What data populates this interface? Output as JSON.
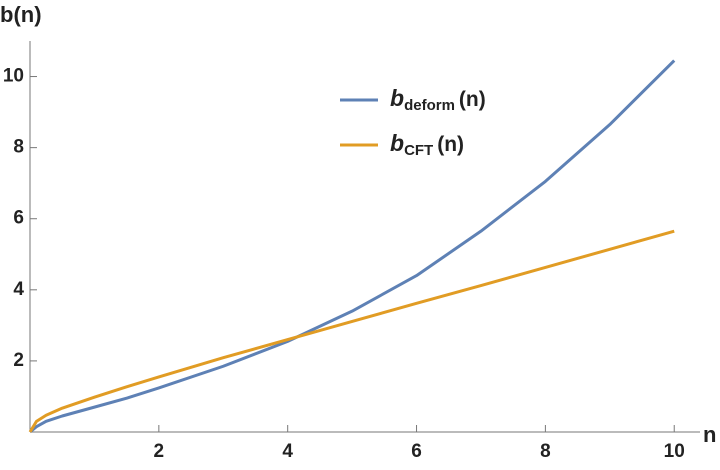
{
  "chart_data": {
    "type": "line",
    "x_label": "n",
    "y_label": "b(n)",
    "x": [
      0,
      0.1,
      0.25,
      0.5,
      1,
      1.5,
      2,
      3,
      4,
      5,
      6,
      7,
      8,
      9,
      10
    ],
    "series": [
      {
        "name": {
          "base": "b",
          "subscript": "deform",
          "argument": "(n)"
        },
        "color": "#5e81b5",
        "values": [
          0,
          0.15,
          0.3,
          0.45,
          0.7,
          0.95,
          1.24,
          1.85,
          2.55,
          3.4,
          4.4,
          5.65,
          7.05,
          8.65,
          10.45
        ]
      },
      {
        "name": {
          "base": "b",
          "subscript": "CFT",
          "argument": "(n)"
        },
        "color": "#e19c24",
        "values": [
          0,
          0.3,
          0.47,
          0.67,
          0.98,
          1.27,
          1.55,
          2.09,
          2.6,
          3.11,
          3.62,
          4.12,
          4.63,
          5.14,
          5.65
        ]
      }
    ],
    "xlim": [
      0,
      10.4
    ],
    "ylim": [
      0,
      11
    ],
    "xticks": [
      2,
      4,
      6,
      8,
      10
    ],
    "yticks": [
      2,
      4,
      6,
      8,
      10
    ],
    "grid": false
  }
}
